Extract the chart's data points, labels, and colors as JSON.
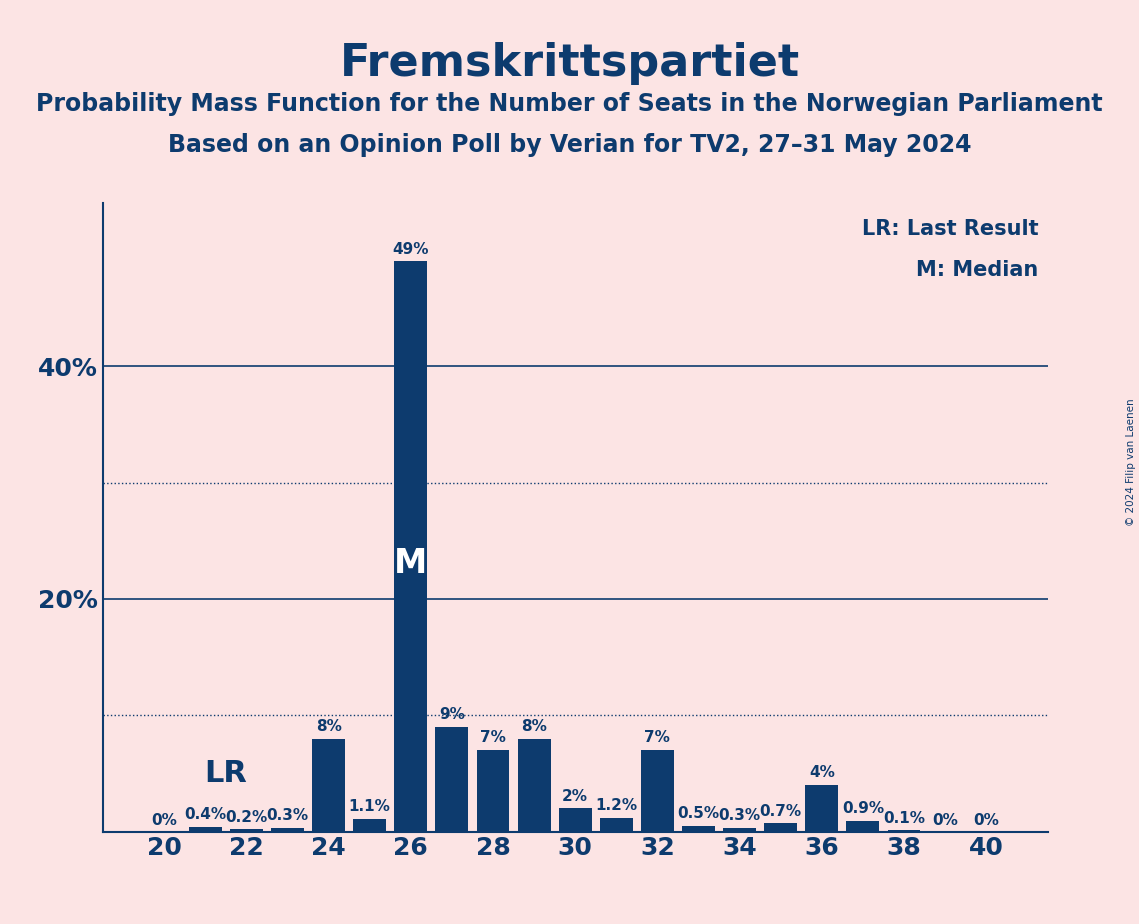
{
  "title": "Fremskrittspartiet",
  "subtitle1": "Probability Mass Function for the Number of Seats in the Norwegian Parliament",
  "subtitle2": "Based on an Opinion Poll by Verian for TV2, 27–31 May 2024",
  "copyright": "© 2024 Filip van Laenen",
  "seats": [
    20,
    21,
    22,
    23,
    24,
    25,
    26,
    27,
    28,
    29,
    30,
    31,
    32,
    33,
    34,
    35,
    36,
    37,
    38,
    39,
    40
  ],
  "probabilities": [
    0.0,
    0.4,
    0.2,
    0.3,
    8.0,
    1.1,
    49.0,
    9.0,
    7.0,
    8.0,
    2.0,
    1.2,
    7.0,
    0.5,
    0.3,
    0.7,
    4.0,
    0.9,
    0.1,
    0.0,
    0.0
  ],
  "bar_color": "#0d3b6e",
  "background_color": "#fce4e4",
  "text_color": "#0d3b6e",
  "median_seat": 26,
  "lr_seat": 21,
  "ymax": 54,
  "dotted_line_values": [
    10.0,
    30.0
  ],
  "solid_line_values": [
    20.0,
    40.0
  ],
  "xtick_positions": [
    20,
    22,
    24,
    26,
    28,
    30,
    32,
    34,
    36,
    38,
    40
  ],
  "legend_lr_label": "LR: Last Result",
  "legend_m_label": "M: Median",
  "lr_annotation": "LR",
  "m_annotation": "M",
  "title_fontsize": 32,
  "subtitle_fontsize": 17,
  "bar_label_fontsize": 11,
  "tick_fontsize": 18
}
